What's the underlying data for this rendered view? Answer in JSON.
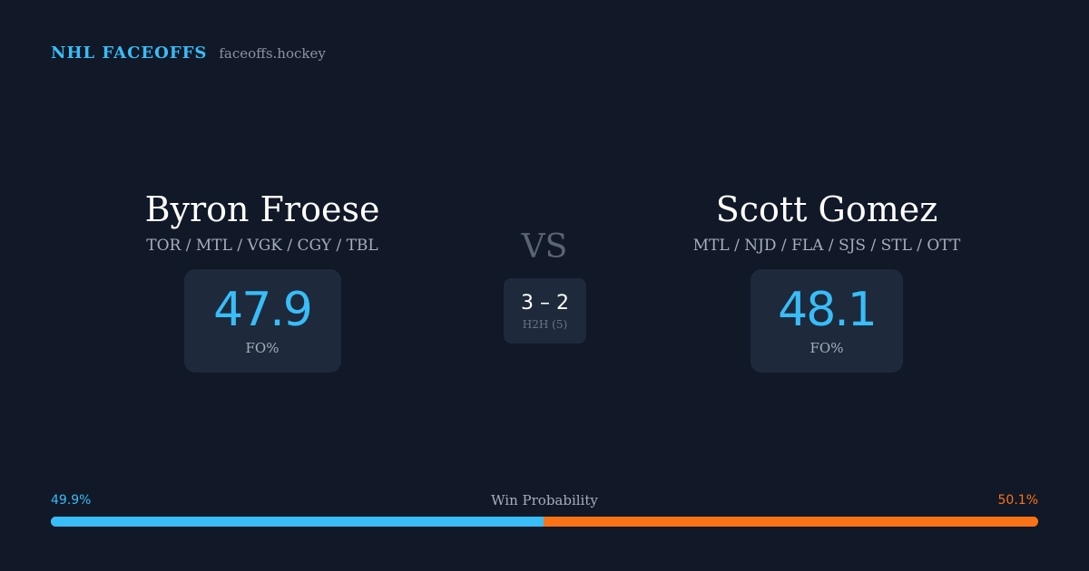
{
  "brand": {
    "title": "NHL FACEOFFS",
    "site": "faceoffs.hockey"
  },
  "left_player": {
    "name": "Byron Froese",
    "teams": "TOR / MTL / VGK / CGY / TBL",
    "stat_value": "47.9",
    "stat_label": "FO%"
  },
  "right_player": {
    "name": "Scott Gomez",
    "teams": "MTL / NJD / FLA / SJS / STL / OTT",
    "stat_value": "48.1",
    "stat_label": "FO%"
  },
  "versus": {
    "label": "VS",
    "h2h_score": "3 – 2",
    "h2h_label": "H2H (5)"
  },
  "win_probability": {
    "title": "Win Probability",
    "left_label": "49.9%",
    "right_label": "50.1%",
    "left_value": 49.9,
    "right_value": 50.1
  },
  "colors": {
    "background": "#111827",
    "card": "#1e293b",
    "accent_blue": "#38bdf8",
    "accent_orange": "#f97316",
    "muted_text": "#a5aebd"
  }
}
